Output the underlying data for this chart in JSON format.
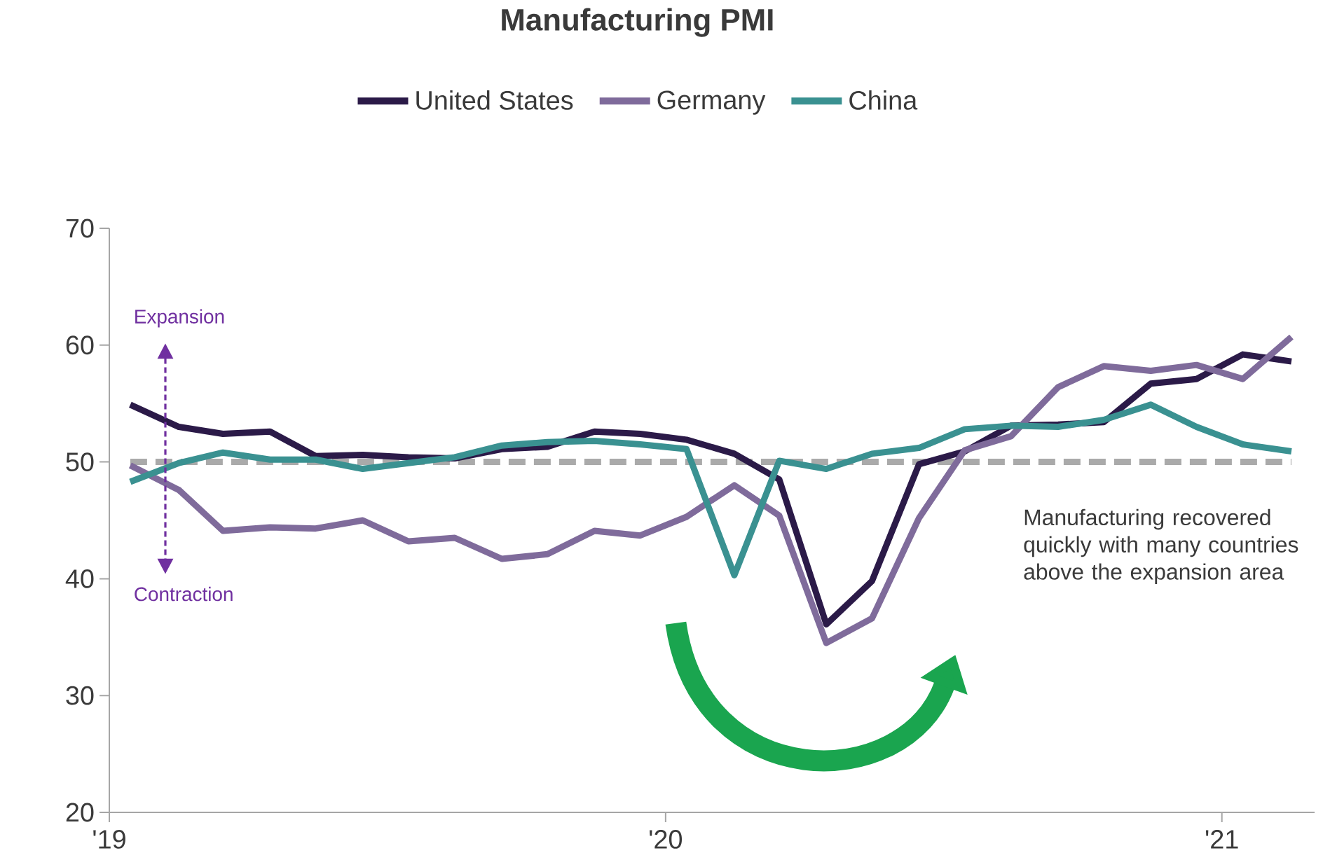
{
  "chart_data": {
    "type": "line",
    "title": "Manufacturing PMI",
    "x": [
      "2019-01-15",
      "2019-02-15",
      "2019-03-15",
      "2019-04-15",
      "2019-05-15",
      "2019-06-15",
      "2019-07-15",
      "2019-08-15",
      "2019-09-15",
      "2019-10-15",
      "2019-11-15",
      "2019-12-15",
      "2020-01-15",
      "2020-02-15",
      "2020-03-15",
      "2020-04-15",
      "2020-05-15",
      "2020-06-15",
      "2020-07-15",
      "2020-08-15",
      "2020-09-15",
      "2020-10-15",
      "2020-11-15",
      "2020-12-15",
      "2021-01-15",
      "2021-02-15"
    ],
    "series": [
      {
        "name": "United States",
        "color": "#2b1a48",
        "values": [
          54.9,
          53.0,
          52.4,
          52.6,
          50.5,
          50.6,
          50.4,
          50.3,
          51.1,
          51.3,
          52.6,
          52.4,
          51.9,
          50.7,
          48.5,
          36.1,
          39.8,
          49.8,
          50.9,
          53.1,
          53.2,
          53.4,
          56.7,
          57.1,
          59.2,
          58.6
        ]
      },
      {
        "name": "Germany",
        "color": "#7f6b9b",
        "values": [
          49.7,
          47.6,
          44.1,
          44.4,
          44.3,
          45.0,
          43.2,
          43.5,
          41.7,
          42.1,
          44.1,
          43.7,
          45.3,
          48.0,
          45.4,
          34.5,
          36.6,
          45.2,
          51.0,
          52.2,
          56.4,
          58.2,
          57.8,
          58.3,
          57.1,
          60.7
        ]
      },
      {
        "name": "China",
        "color": "#3a9191",
        "values": [
          48.3,
          49.9,
          50.8,
          50.2,
          50.2,
          49.4,
          49.9,
          50.4,
          51.4,
          51.7,
          51.8,
          51.5,
          51.1,
          40.3,
          50.1,
          49.4,
          50.7,
          51.2,
          52.8,
          53.1,
          53.0,
          53.6,
          54.9,
          53.0,
          51.5,
          50.9
        ]
      }
    ],
    "xlim": [
      "2019-01-01",
      "2021-03-01"
    ],
    "xticks": [
      {
        "value": "2019-01-01",
        "label": "'19"
      },
      {
        "value": "2020-01-01",
        "label": "'20"
      },
      {
        "value": "2021-01-01",
        "label": "'21"
      }
    ],
    "ylim": [
      20,
      70
    ],
    "yticks": [
      20,
      30,
      40,
      50,
      60,
      70
    ],
    "ref_lines": [
      {
        "axis": "y",
        "value": 50,
        "color": "#aaaaaa",
        "line_style": "dashed"
      }
    ],
    "annotations": [
      "Expansion",
      "Contraction",
      "Manufacturing recovered quickly with many countries above the expansion area"
    ],
    "legend": "top"
  }
}
